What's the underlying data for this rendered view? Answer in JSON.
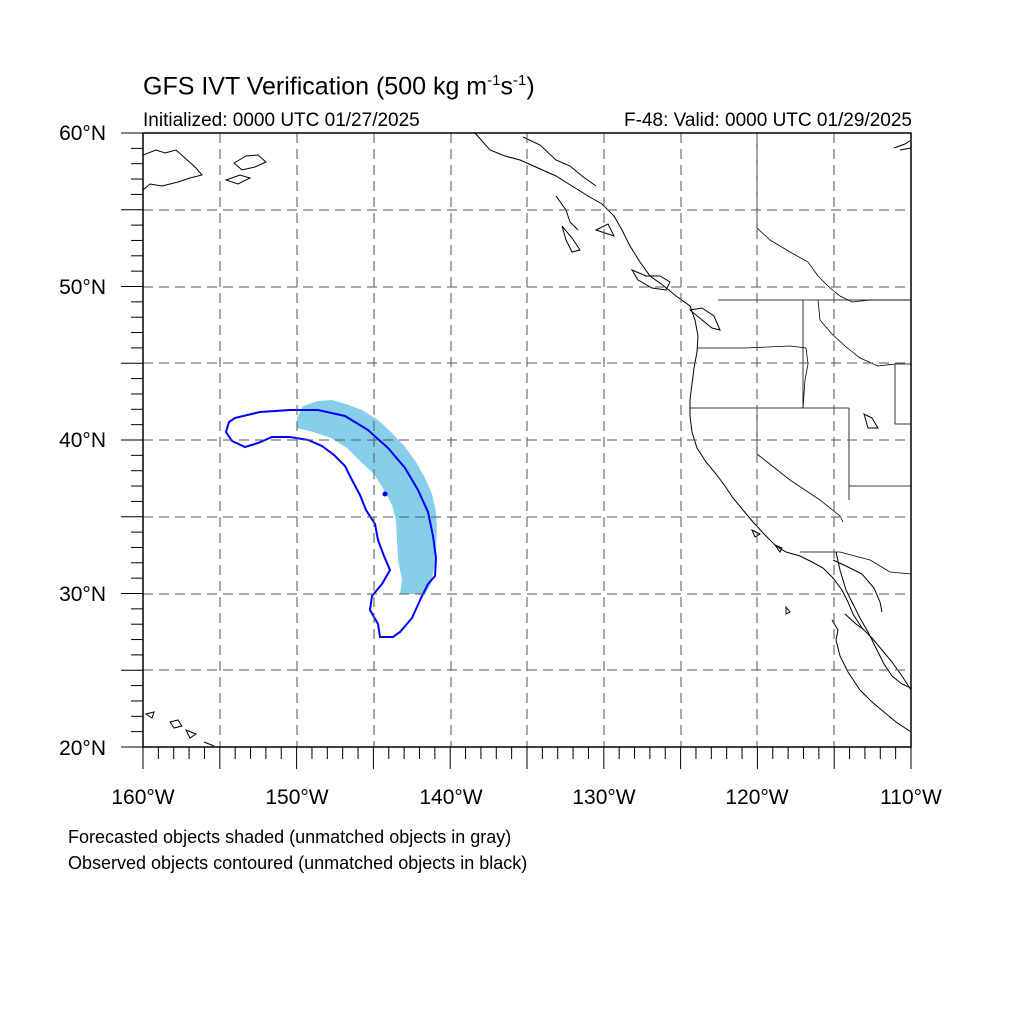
{
  "title": {
    "main": "GFS IVT Verification (500 kg m",
    "exp1": "-1",
    "mid": "s",
    "exp2": "-1",
    "close": ")"
  },
  "initialized": "Initialized: 0000 UTC 01/27/2025",
  "valid": "F-48: Valid: 0000 UTC 01/29/2025",
  "lat_labels": [
    "60°N",
    "50°N",
    "40°N",
    "30°N",
    "20°N"
  ],
  "lon_labels": [
    "160°W",
    "150°W",
    "140°W",
    "130°W",
    "120°W",
    "110°W"
  ],
  "captions": [
    "Forecasted objects shaded (unmatched objects in gray)",
    "Observed objects contoured (unmatched objects in black)"
  ],
  "map_extent": {
    "lon_min": -160,
    "lon_max": -110,
    "lat_min": 20,
    "lat_max": 60
  },
  "colors": {
    "forecast_fill": "#87ceeb",
    "observed_contour": "#0000ff",
    "coastline": "#000000",
    "grid": "#555555"
  }
}
